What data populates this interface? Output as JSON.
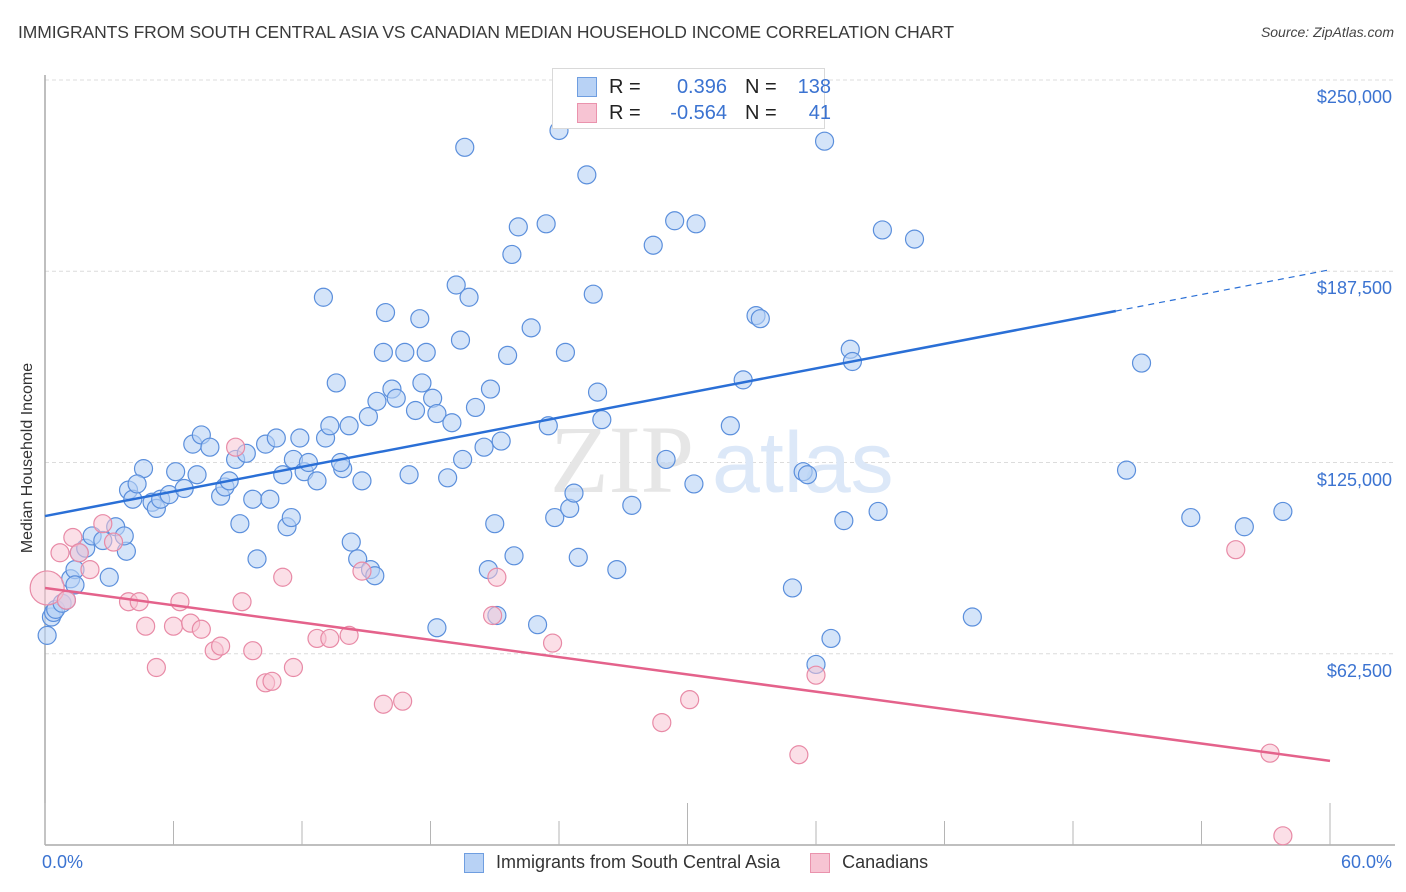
{
  "header": {
    "title": "IMMIGRANTS FROM SOUTH CENTRAL ASIA VS CANADIAN MEDIAN HOUSEHOLD INCOME CORRELATION CHART",
    "source": "Source: ZipAtlas.com"
  },
  "legend": {
    "series": [
      {
        "r_label": "R =",
        "r_value": "0.396",
        "n_label": "N =",
        "n_value": "138"
      },
      {
        "r_label": "R =",
        "r_value": "-0.564",
        "n_label": "N =",
        "n_value": "41"
      }
    ]
  },
  "colors": {
    "blue_fill": "#b8d2f5",
    "blue_stroke": "#5b8fdc",
    "blue_line": "#2a6fd6",
    "pink_fill": "#f7c4d3",
    "pink_stroke": "#e88aa6",
    "pink_line": "#e4628b",
    "axis_text": "#3b73d1"
  },
  "watermark": {
    "zip": "ZIP",
    "atlas": "atlas"
  },
  "chart_data": {
    "type": "scatter",
    "title": "IMMIGRANTS FROM SOUTH CENTRAL ASIA VS CANADIAN MEDIAN HOUSEHOLD INCOME CORRELATION CHART",
    "xlabel": "",
    "ylabel": "Median Household Income",
    "xlim": [
      0,
      60
    ],
    "ylim": [
      0,
      255000
    ],
    "x_tick_labels": [
      "0.0%",
      "60.0%"
    ],
    "y_ticks": [
      62500,
      125000,
      187500,
      250000
    ],
    "y_tick_labels": [
      "$62,500",
      "$125,000",
      "$187,500",
      "$250,000"
    ],
    "grid": "horizontal dashed",
    "legend_position": "bottom-center",
    "series": [
      {
        "name": "Immigrants from South Central Asia",
        "color": "#5b8fdc",
        "r": 0.396,
        "n": 138,
        "trend": {
          "x": [
            0,
            50.0,
            60.0
          ],
          "y": [
            107500,
            174500,
            188000
          ],
          "dashed_from_x": 50.0
        },
        "points": [
          [
            0.1,
            68500
          ],
          [
            0.3,
            74500
          ],
          [
            0.4,
            76000
          ],
          [
            0.5,
            77000
          ],
          [
            0.8,
            79000
          ],
          [
            1.0,
            80000
          ],
          [
            1.2,
            87000
          ],
          [
            1.4,
            90000
          ],
          [
            1.4,
            85000
          ],
          [
            1.6,
            95500
          ],
          [
            1.9,
            97000
          ],
          [
            2.2,
            101000
          ],
          [
            2.7,
            99500
          ],
          [
            3.0,
            87500
          ],
          [
            3.3,
            104000
          ],
          [
            3.8,
            96000
          ],
          [
            3.7,
            101000
          ],
          [
            3.9,
            116000
          ],
          [
            4.1,
            113000
          ],
          [
            4.6,
            123000
          ],
          [
            4.3,
            118000
          ],
          [
            5.0,
            112000
          ],
          [
            5.2,
            110000
          ],
          [
            5.4,
            113000
          ],
          [
            5.8,
            114500
          ],
          [
            6.1,
            122000
          ],
          [
            6.5,
            116500
          ],
          [
            6.9,
            131000
          ],
          [
            7.1,
            121000
          ],
          [
            7.3,
            134000
          ],
          [
            7.7,
            130000
          ],
          [
            8.2,
            114000
          ],
          [
            8.4,
            117000
          ],
          [
            8.6,
            119000
          ],
          [
            8.9,
            126000
          ],
          [
            9.1,
            105000
          ],
          [
            9.4,
            128000
          ],
          [
            9.7,
            113000
          ],
          [
            9.9,
            93500
          ],
          [
            10.3,
            131000
          ],
          [
            10.5,
            113000
          ],
          [
            10.8,
            133000
          ],
          [
            11.1,
            121000
          ],
          [
            11.3,
            104000
          ],
          [
            11.5,
            107000
          ],
          [
            11.6,
            126000
          ],
          [
            11.9,
            133000
          ],
          [
            12.1,
            122000
          ],
          [
            12.3,
            125000
          ],
          [
            12.7,
            119000
          ],
          [
            13.1,
            133000
          ],
          [
            13.0,
            179000
          ],
          [
            13.3,
            137000
          ],
          [
            13.6,
            151000
          ],
          [
            13.9,
            123000
          ],
          [
            14.2,
            137000
          ],
          [
            13.8,
            125000
          ],
          [
            14.3,
            99000
          ],
          [
            14.6,
            93500
          ],
          [
            14.8,
            119000
          ],
          [
            15.1,
            140000
          ],
          [
            15.2,
            90000
          ],
          [
            15.5,
            145000
          ],
          [
            15.4,
            88000
          ],
          [
            15.8,
            161000
          ],
          [
            15.9,
            174000
          ],
          [
            16.2,
            149000
          ],
          [
            16.4,
            146000
          ],
          [
            16.8,
            161000
          ],
          [
            17.0,
            121000
          ],
          [
            17.3,
            142000
          ],
          [
            17.5,
            172000
          ],
          [
            17.8,
            161000
          ],
          [
            17.6,
            151000
          ],
          [
            18.1,
            146000
          ],
          [
            18.3,
            141000
          ],
          [
            18.3,
            71000
          ],
          [
            18.8,
            120000
          ],
          [
            19.0,
            138000
          ],
          [
            19.2,
            183000
          ],
          [
            19.4,
            165000
          ],
          [
            19.5,
            126000
          ],
          [
            19.6,
            228000
          ],
          [
            19.8,
            179000
          ],
          [
            20.1,
            143000
          ],
          [
            20.5,
            130000
          ],
          [
            20.8,
            149000
          ],
          [
            20.7,
            90000
          ],
          [
            21.0,
            105000
          ],
          [
            21.3,
            132000
          ],
          [
            21.1,
            75000
          ],
          [
            21.6,
            160000
          ],
          [
            21.8,
            193000
          ],
          [
            21.9,
            94500
          ],
          [
            22.1,
            202000
          ],
          [
            22.7,
            169000
          ],
          [
            23.0,
            72000
          ],
          [
            23.4,
            203000
          ],
          [
            23.5,
            137000
          ],
          [
            23.8,
            107000
          ],
          [
            24.0,
            233500
          ],
          [
            24.3,
            161000
          ],
          [
            24.5,
            110000
          ],
          [
            24.7,
            115000
          ],
          [
            24.9,
            94000
          ],
          [
            25.3,
            219000
          ],
          [
            25.6,
            180000
          ],
          [
            25.8,
            148000
          ],
          [
            26.0,
            139000
          ],
          [
            26.7,
            90000
          ],
          [
            27.4,
            111000
          ],
          [
            28.4,
            196000
          ],
          [
            29.0,
            126000
          ],
          [
            29.4,
            204000
          ],
          [
            30.3,
            118000
          ],
          [
            30.4,
            203000
          ],
          [
            32.0,
            137000
          ],
          [
            32.6,
            152000
          ],
          [
            33.2,
            173000
          ],
          [
            33.4,
            172000
          ],
          [
            34.9,
            84000
          ],
          [
            35.4,
            122000
          ],
          [
            35.6,
            121000
          ],
          [
            36.0,
            59000
          ],
          [
            36.4,
            230000
          ],
          [
            36.7,
            67500
          ],
          [
            37.3,
            106000
          ],
          [
            37.6,
            162000
          ],
          [
            37.7,
            158000
          ],
          [
            38.9,
            109000
          ],
          [
            39.1,
            201000
          ],
          [
            40.6,
            198000
          ],
          [
            43.3,
            74500
          ],
          [
            50.5,
            122500
          ],
          [
            51.2,
            157500
          ],
          [
            53.5,
            107000
          ],
          [
            56.0,
            104000
          ],
          [
            57.8,
            109000
          ]
        ]
      },
      {
        "name": "Canadians",
        "color": "#e88aa6",
        "r": -0.564,
        "n": 41,
        "trend": {
          "x": [
            0,
            60.0
          ],
          "y": [
            84000,
            27500
          ]
        },
        "points": [
          [
            0.1,
            84000
          ],
          [
            0.7,
            95500
          ],
          [
            1.3,
            100500
          ],
          [
            1.6,
            95500
          ],
          [
            2.1,
            90000
          ],
          [
            2.7,
            105000
          ],
          [
            3.2,
            99000
          ],
          [
            3.9,
            79500
          ],
          [
            4.4,
            79500
          ],
          [
            4.7,
            71500
          ],
          [
            5.2,
            58000
          ],
          [
            6.0,
            71500
          ],
          [
            6.3,
            79500
          ],
          [
            6.8,
            72500
          ],
          [
            7.3,
            70500
          ],
          [
            7.9,
            63500
          ],
          [
            8.2,
            65000
          ],
          [
            8.9,
            130000
          ],
          [
            9.2,
            79500
          ],
          [
            9.7,
            63500
          ],
          [
            10.3,
            53000
          ],
          [
            10.6,
            53500
          ],
          [
            11.1,
            87500
          ],
          [
            11.6,
            58000
          ],
          [
            12.7,
            67500
          ],
          [
            13.3,
            67500
          ],
          [
            14.2,
            68500
          ],
          [
            14.8,
            89500
          ],
          [
            15.8,
            46000
          ],
          [
            16.7,
            47000
          ],
          [
            20.9,
            75000
          ],
          [
            21.1,
            87500
          ],
          [
            23.7,
            66000
          ],
          [
            28.8,
            40000
          ],
          [
            30.1,
            47500
          ],
          [
            35.2,
            29500
          ],
          [
            36.0,
            55500
          ],
          [
            55.6,
            96500
          ],
          [
            57.2,
            30000
          ],
          [
            57.8,
            3000
          ],
          [
            1.0,
            80000
          ]
        ]
      }
    ]
  }
}
